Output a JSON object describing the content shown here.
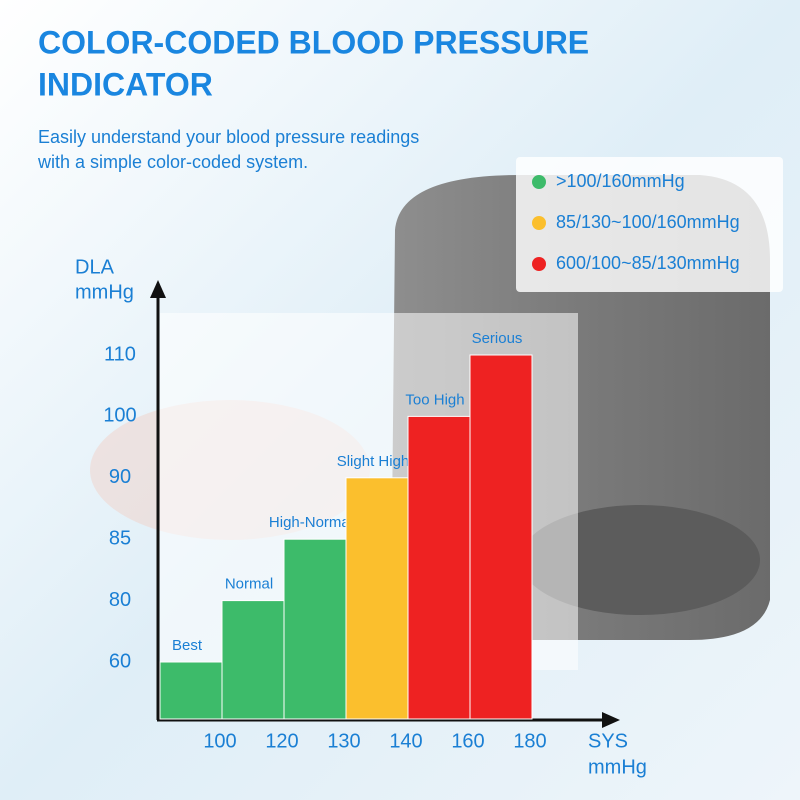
{
  "chart_data": {
    "type": "bar",
    "title": [
      "COLOR-CODED BLOOD PRESSURE",
      "INDICATOR"
    ],
    "subtitle": [
      "Easily understand your blood pressure readings",
      "with a simple color-coded system."
    ],
    "y_label": [
      "DLA",
      "mmHg"
    ],
    "x_label": [
      "SYS",
      "mmHg"
    ],
    "categories": [
      "Best",
      "Normal",
      "High-Normal",
      "Slight High",
      "Too High",
      "Serious"
    ],
    "values": [
      60,
      80,
      85,
      90,
      100,
      110
    ],
    "colors": [
      "#3dbb6a",
      "#3dbb6a",
      "#3dbb6a",
      "#fbbf2d",
      "#ee2222",
      "#ee2222"
    ],
    "yticks": [
      60,
      80,
      85,
      90,
      100,
      110
    ],
    "xticks": [
      100,
      120,
      130,
      140,
      160,
      180
    ],
    "legend": [
      {
        "label": ">100/160mmHg",
        "color": "#3dbb6a"
      },
      {
        "label": "85/130~100/160mmHg",
        "color": "#fbbf2d"
      },
      {
        "label": "600/100~85/130mmHg",
        "color": "#ee2222"
      }
    ]
  }
}
